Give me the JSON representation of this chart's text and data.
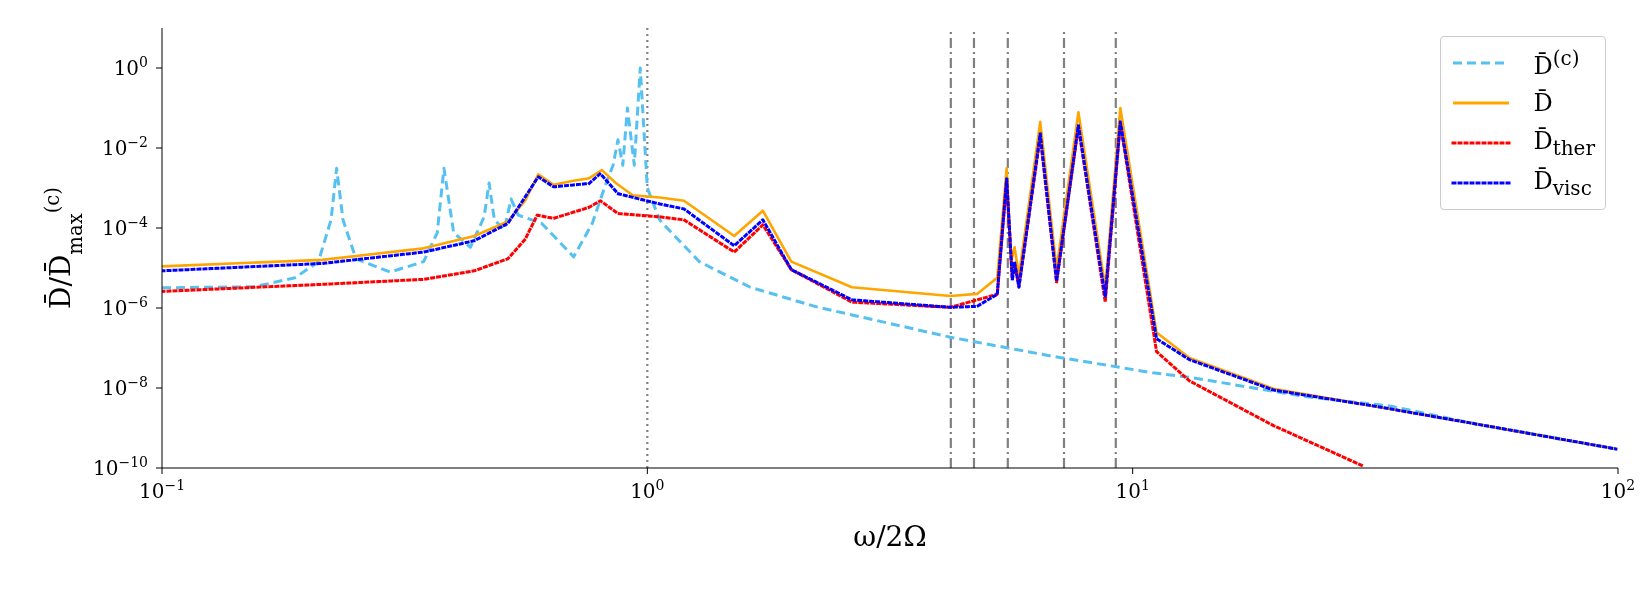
{
  "chart_data": {
    "type": "line",
    "xlabel": "ω/2Ω",
    "ylabel": "D̄/D̄$_{max}$$^{(c)}$",
    "log": "xy",
    "xlim": [
      0.1,
      100
    ],
    "ylim": [
      1e-10,
      10
    ],
    "xticks": [
      {
        "value": 0.1,
        "label": "10$^{−1}$"
      },
      {
        "value": 1,
        "label": "10$^{0}$"
      },
      {
        "value": 10,
        "label": "10$^{1}$"
      },
      {
        "value": 100,
        "label": "10$^{2}$"
      }
    ],
    "yticks": [
      {
        "value": 1e-10,
        "label": "10$^{−10}$"
      },
      {
        "value": 1e-08,
        "label": "10$^{−8}$"
      },
      {
        "value": 1e-06,
        "label": "10$^{−6}$"
      },
      {
        "value": 0.0001,
        "label": "10$^{−4}$"
      },
      {
        "value": 0.01,
        "label": "10$^{−2}$"
      },
      {
        "value": 1,
        "label": "10$^{0}$"
      }
    ],
    "grid": false,
    "legend": "top right",
    "series": [
      {
        "name": "D̄$^{(c)}$",
        "color": "#56c1f0",
        "line_style": "dashed",
        "x": [
          0.1,
          0.155,
          0.188,
          0.21,
          0.223,
          0.229,
          0.236,
          0.251,
          0.295,
          0.346,
          0.369,
          0.381,
          0.399,
          0.432,
          0.461,
          0.472,
          0.484,
          0.507,
          0.524,
          0.542,
          0.606,
          0.705,
          0.77,
          0.82,
          0.85,
          0.87,
          0.89,
          0.91,
          0.94,
          0.967,
          1.0,
          1.06,
          1.09,
          1.28,
          1.63,
          2.23,
          4.21,
          6.84,
          11,
          13.1,
          22.9,
          34.1,
          51,
          99
        ],
        "values": [
          3.2e-06,
          3.4e-06,
          5.7e-06,
          1.44e-05,
          0.00016,
          0.0031,
          0.00016,
          1.7e-05,
          7.9e-06,
          1.44e-05,
          7.6e-05,
          0.0031,
          7.6e-05,
          3.3e-05,
          0.00019,
          0.00133,
          0.00016,
          9.1e-05,
          0.00053,
          0.00021,
          0.00013,
          1.9e-05,
          0.00013,
          0.0012,
          0.0037,
          0.016,
          0.0037,
          0.1,
          0.0037,
          1.0,
          0.001,
          0.00016,
          0.00011,
          1.44e-05,
          3.3e-06,
          1.07e-06,
          1.86e-07,
          6.2e-08,
          2.4e-08,
          1.85e-08,
          6e-09,
          3.5e-09,
          1.26e-09,
          3e-10
        ]
      },
      {
        "name": "D̄",
        "color": "#ffa500",
        "line_style": "solid",
        "x": [
          0.1,
          0.214,
          0.346,
          0.44,
          0.516,
          0.56,
          0.596,
          0.641,
          0.7,
          0.759,
          0.806,
          0.861,
          0.933,
          1.06,
          1.19,
          1.51,
          1.73,
          1.98,
          2.64,
          4.21,
          4.78,
          5.26,
          5.5,
          5.62,
          5.71,
          5.83,
          6.45,
          6.97,
          7.73,
          8.78,
          9.43,
          11.2,
          13.1,
          19.5,
          31.6,
          51,
          99
        ],
        "values": [
          1.1e-05,
          1.6e-05,
          3.1e-05,
          6.3e-05,
          0.000145,
          0.00048,
          0.0022,
          0.0012,
          0.0015,
          0.00176,
          0.0028,
          0.00133,
          0.00066,
          0.00058,
          0.00048,
          6.3e-05,
          0.00027,
          1.44e-05,
          3.3e-06,
          2e-06,
          2.25e-06,
          5.7e-06,
          0.0031,
          1.44e-05,
          3.3e-05,
          6.3e-06,
          0.045,
          9.5e-06,
          0.078,
          3.2e-06,
          0.1,
          2.45e-07,
          5.6e-08,
          9.6e-09,
          3.5e-09,
          1.26e-09,
          3e-10
        ]
      },
      {
        "name": "D̄$_{ther}$",
        "color": "#ff0000",
        "line_style": "dotted",
        "x": [
          0.1,
          0.214,
          0.346,
          0.44,
          0.516,
          0.56,
          0.593,
          0.641,
          0.759,
          0.8,
          0.87,
          1.06,
          1.19,
          1.51,
          1.73,
          1.98,
          2.64,
          4.21,
          5.26,
          5.5,
          5.65,
          5.71,
          5.83,
          6.45,
          6.97,
          7.73,
          8.78,
          9.43,
          11.2,
          13.1,
          19.5,
          30.1
        ],
        "values": [
          2.6e-06,
          3.9e-06,
          5.2e-06,
          8.5e-06,
          1.7e-05,
          5.2e-05,
          0.00021,
          0.000174,
          0.00033,
          0.00048,
          0.00023,
          0.00019,
          0.00016,
          2.5e-05,
          0.00012,
          9.1e-06,
          1.4e-06,
          1.04e-06,
          2.2e-06,
          0.0015,
          5e-06,
          1.3e-05,
          3.5e-06,
          0.019,
          4.4e-06,
          0.034,
          1.4e-06,
          0.041,
          8.1e-08,
          1.5e-08,
          1.15e-09,
          1.07e-10
        ]
      },
      {
        "name": "D̄$_{visc}$",
        "color": "#0000ff",
        "line_style": "dotted",
        "x": [
          0.1,
          0.214,
          0.346,
          0.44,
          0.516,
          0.596,
          0.641,
          0.759,
          0.8,
          0.87,
          1.06,
          1.19,
          1.51,
          1.73,
          1.98,
          2.64,
          4.21,
          4.78,
          5.26,
          5.5,
          5.65,
          5.71,
          5.83,
          6.45,
          6.97,
          7.73,
          8.78,
          9.43,
          11.2,
          13.1,
          19.5,
          31.6,
          51,
          99
        ],
        "values": [
          8.5e-06,
          1.3e-05,
          2.5e-05,
          4.8e-05,
          0.00013,
          0.0019,
          0.00107,
          0.0013,
          0.0023,
          0.00072,
          0.0004,
          0.0003,
          3.6e-05,
          0.00016,
          9.1e-06,
          1.6e-06,
          1.04e-06,
          1.1e-06,
          2.2e-06,
          0.0017,
          5.1e-06,
          1.4e-05,
          3.3e-06,
          0.023,
          4.7e-06,
          0.037,
          1.9e-06,
          0.045,
          1.7e-07,
          5.1e-08,
          8.9e-09,
          3.5e-09,
          1.26e-09,
          3e-10
        ]
      }
    ],
    "ref_lines": [
      {
        "axis": "x",
        "value": 1,
        "color": "#808080",
        "line_style": "dotted"
      },
      {
        "axis": "x",
        "value": 4.22,
        "color": "#808080",
        "line_style": "dashdot"
      },
      {
        "axis": "x",
        "value": 4.71,
        "color": "#808080",
        "line_style": "dashdot"
      },
      {
        "axis": "x",
        "value": 5.53,
        "color": "#808080",
        "line_style": "dashdot"
      },
      {
        "axis": "x",
        "value": 7.22,
        "color": "#808080",
        "line_style": "dashdot"
      },
      {
        "axis": "x",
        "value": 9.23,
        "color": "#808080",
        "line_style": "dashdot"
      }
    ]
  }
}
